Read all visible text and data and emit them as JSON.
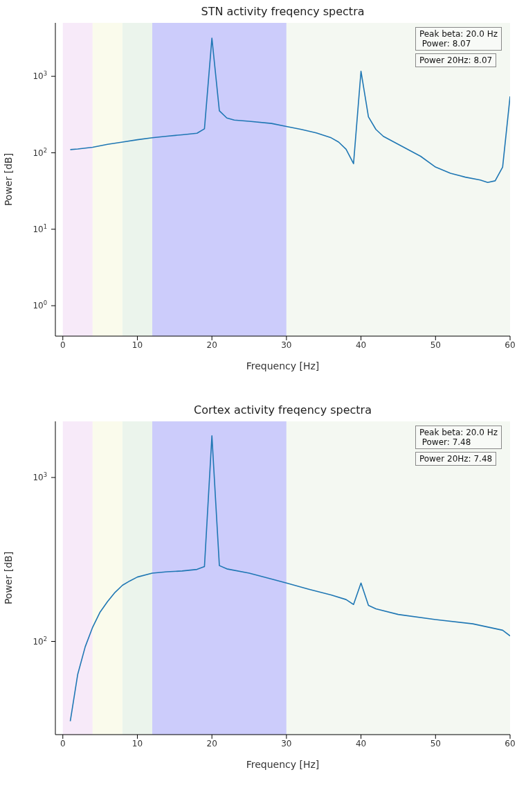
{
  "chart_data": [
    {
      "type": "line",
      "title": "STN activity freqency spectra",
      "xlabel": "Frequency [Hz]",
      "ylabel": "Power [dB]",
      "log": "y",
      "marker": "none",
      "line_style": "solid",
      "xlim": [
        -1,
        60
      ],
      "xticks": [
        0,
        10,
        20,
        30,
        40,
        50,
        60
      ],
      "ylim": [
        0.4,
        5000
      ],
      "yticks": [
        {
          "value": 1,
          "label": "10$^{0}$"
        },
        {
          "value": 10,
          "label": "10$^{1}$"
        },
        {
          "value": 100,
          "label": "10$^{2}$"
        },
        {
          "value": 1000,
          "label": "10$^{3}$"
        }
      ],
      "bands": [
        {
          "axis": "x",
          "from": 0,
          "to": 4,
          "color": "#f7eaf9"
        },
        {
          "axis": "x",
          "from": 4,
          "to": 8,
          "color": "#fafbec"
        },
        {
          "axis": "x",
          "from": 8,
          "to": 12,
          "color": "#ebf4ec"
        },
        {
          "axis": "x",
          "from": 12,
          "to": 30,
          "color": "#ccccfb"
        },
        {
          "axis": "x",
          "from": 30,
          "to": 60,
          "color": "#f4f8f2"
        }
      ],
      "annotations": [
        "Peak beta: 20.0 Hz\n Power: 8.07",
        "Power 20Hz: 8.07"
      ],
      "series": [
        {
          "color": "#1f77b4",
          "x": [
            1,
            2,
            4,
            6,
            8,
            10,
            12,
            14,
            16,
            18,
            19,
            20,
            21,
            22,
            23,
            25,
            28,
            30,
            32,
            34,
            36,
            37,
            38,
            39,
            40,
            41,
            42,
            43,
            45,
            48,
            50,
            52,
            54,
            56,
            57,
            58,
            59,
            60
          ],
          "values": [
            110,
            112,
            118,
            129,
            138,
            148,
            157,
            165,
            172,
            180,
            206,
            3160,
            354,
            285,
            268,
            258,
            242,
            221,
            202,
            182,
            157,
            138,
            111,
            72,
            1166,
            295,
            202,
            164,
            129,
            90,
            65,
            54,
            48,
            44,
            41,
            43,
            65,
            547
          ]
        }
      ]
    },
    {
      "type": "line",
      "title": "Cortex activity freqency spectra",
      "xlabel": "Frequency [Hz]",
      "ylabel": "Power [dB]",
      "log": "y",
      "marker": "none",
      "line_style": "solid",
      "xlim": [
        -1,
        60
      ],
      "xticks": [
        0,
        10,
        20,
        30,
        40,
        50,
        60
      ],
      "ylim": [
        27,
        2200
      ],
      "yticks": [
        {
          "value": 100,
          "label": "10$^{2}$"
        },
        {
          "value": 1000,
          "label": "10$^{3}$"
        }
      ],
      "bands": [
        {
          "axis": "x",
          "from": 0,
          "to": 4,
          "color": "#f7eaf9"
        },
        {
          "axis": "x",
          "from": 4,
          "to": 8,
          "color": "#fafbec"
        },
        {
          "axis": "x",
          "from": 8,
          "to": 12,
          "color": "#ebf4ec"
        },
        {
          "axis": "x",
          "from": 12,
          "to": 30,
          "color": "#ccccfb"
        },
        {
          "axis": "x",
          "from": 30,
          "to": 60,
          "color": "#f4f8f2"
        }
      ],
      "annotations": [
        "Peak beta: 20.0 Hz\n Power: 7.48",
        "Power 20Hz: 7.48"
      ],
      "series": [
        {
          "color": "#1f77b4",
          "x": [
            1,
            2,
            3,
            4,
            5,
            6,
            7,
            8,
            9,
            10,
            12,
            14,
            16,
            18,
            19,
            20,
            21,
            22,
            25,
            28,
            30,
            33,
            36,
            38,
            39,
            40,
            41,
            42,
            45,
            50,
            55,
            59,
            60
          ],
          "values": [
            32.6,
            63,
            92.6,
            122,
            151,
            175,
            199,
            220,
            234,
            247,
            261,
            266,
            269,
            275,
            286,
            1795,
            290,
            277,
            261,
            240,
            227,
            208,
            192,
            180,
            168,
            227,
            166,
            158,
            146,
            136,
            128,
            117,
            108
          ]
        }
      ]
    }
  ]
}
